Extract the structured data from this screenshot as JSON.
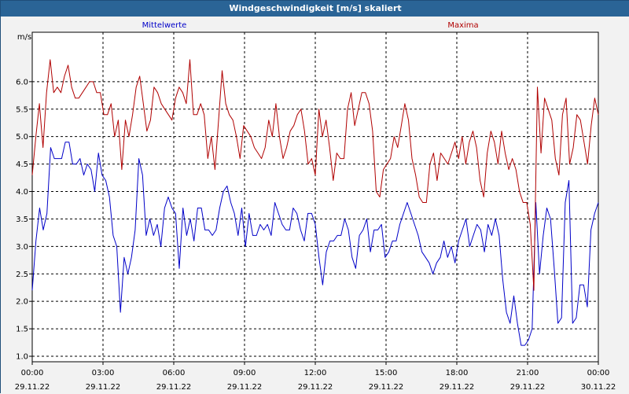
{
  "window": {
    "title": "Windgeschwindigkeit [m/s] skaliert"
  },
  "colors": {
    "titlebar": "#2a6496",
    "mean": "#0000c8",
    "max": "#b00000",
    "grid": "#000000"
  },
  "chart_data": {
    "type": "line",
    "title": "Windgeschwindigkeit [m/s] skaliert",
    "ylabel": "m/s",
    "xlabel": "",
    "ylim": [
      0.9,
      6.9
    ],
    "xlim": [
      0,
      24
    ],
    "grid": true,
    "legend_placement": "top",
    "y_ticks": [
      "1.0",
      "1.5",
      "2.0",
      "2.5",
      "3.0",
      "3.5",
      "4.0",
      "4.5",
      "5.0",
      "5.5",
      "6.0"
    ],
    "x_ticks": [
      {
        "time": "00:00",
        "date": "29.11.22"
      },
      {
        "time": "03:00",
        "date": "29.11.22"
      },
      {
        "time": "06:00",
        "date": "29.11.22"
      },
      {
        "time": "09:00",
        "date": "29.11.22"
      },
      {
        "time": "12:00",
        "date": "29.11.22"
      },
      {
        "time": "15:00",
        "date": "29.11.22"
      },
      {
        "time": "18:00",
        "date": "29.11.22"
      },
      {
        "time": "21:00",
        "date": "29.11.22"
      },
      {
        "time": "00:00",
        "date": "30.11.22"
      }
    ],
    "series": [
      {
        "name": "Mittelwerte",
        "color": "#0000c8",
        "values": [
          2.2,
          3.1,
          3.7,
          3.3,
          3.6,
          4.8,
          4.6,
          4.6,
          4.6,
          4.9,
          4.9,
          4.5,
          4.5,
          4.6,
          4.3,
          4.5,
          4.4,
          4.0,
          4.7,
          4.3,
          4.2,
          3.9,
          3.2,
          3.0,
          1.8,
          2.8,
          2.5,
          2.8,
          3.3,
          4.6,
          4.3,
          3.2,
          3.5,
          3.2,
          3.4,
          3.0,
          3.7,
          3.9,
          3.7,
          3.6,
          2.6,
          3.7,
          3.2,
          3.5,
          3.1,
          3.7,
          3.7,
          3.3,
          3.3,
          3.2,
          3.3,
          3.7,
          4.0,
          4.1,
          3.8,
          3.6,
          3.2,
          3.7,
          3.0,
          3.6,
          3.2,
          3.2,
          3.4,
          3.3,
          3.4,
          3.2,
          3.8,
          3.6,
          3.4,
          3.3,
          3.3,
          3.7,
          3.6,
          3.3,
          3.1,
          3.6,
          3.6,
          3.4,
          2.8,
          2.3,
          2.9,
          3.1,
          3.1,
          3.2,
          3.2,
          3.5,
          3.3,
          2.8,
          2.6,
          3.2,
          3.3,
          3.5,
          2.9,
          3.3,
          3.3,
          3.4,
          2.8,
          2.9,
          3.1,
          3.1,
          3.4,
          3.6,
          3.8,
          3.6,
          3.4,
          3.2,
          2.9,
          2.8,
          2.7,
          2.5,
          2.7,
          2.8,
          3.1,
          2.8,
          3.0,
          2.7,
          3.1,
          3.3,
          3.5,
          3.0,
          3.2,
          3.4,
          3.3,
          2.9,
          3.4,
          3.2,
          3.5,
          3.2,
          2.4,
          1.8,
          1.6,
          2.1,
          1.6,
          1.2,
          1.2,
          1.3,
          1.5,
          3.8,
          2.5,
          3.2,
          3.7,
          3.5,
          2.6,
          1.6,
          1.7,
          3.8,
          4.2,
          1.6,
          1.7,
          2.3,
          2.3,
          1.9,
          3.3,
          3.6,
          3.8
        ]
      },
      {
        "name": "Maxima",
        "color": "#b00000",
        "values": [
          4.3,
          5.0,
          5.6,
          4.8,
          5.8,
          6.4,
          5.8,
          5.9,
          5.8,
          6.1,
          6.3,
          5.9,
          5.7,
          5.7,
          5.8,
          5.9,
          6.0,
          6.0,
          5.8,
          5.8,
          5.4,
          5.4,
          5.6,
          5.0,
          5.3,
          4.4,
          5.3,
          5.0,
          5.4,
          5.9,
          6.1,
          5.6,
          5.1,
          5.3,
          5.9,
          5.8,
          5.6,
          5.5,
          5.4,
          5.3,
          5.7,
          5.9,
          5.8,
          5.6,
          6.4,
          5.4,
          5.4,
          5.6,
          5.4,
          4.6,
          5.0,
          4.4,
          5.3,
          6.2,
          5.6,
          5.4,
          5.3,
          5.0,
          4.6,
          5.2,
          5.1,
          5.0,
          4.8,
          4.7,
          4.6,
          4.8,
          5.3,
          5.0,
          5.6,
          5.0,
          4.6,
          4.8,
          5.1,
          5.2,
          5.4,
          5.5,
          5.1,
          4.5,
          4.6,
          4.3,
          5.5,
          5.0,
          5.3,
          4.8,
          4.2,
          4.7,
          4.6,
          4.6,
          5.5,
          5.8,
          5.2,
          5.5,
          5.8,
          5.8,
          5.6,
          5.1,
          4.0,
          3.9,
          4.4,
          4.5,
          4.6,
          5.0,
          4.8,
          5.2,
          5.6,
          5.3,
          4.6,
          4.3,
          3.9,
          3.8,
          3.8,
          4.5,
          4.7,
          4.2,
          4.7,
          4.6,
          4.5,
          4.7,
          4.9,
          4.6,
          5.0,
          4.5,
          4.9,
          5.1,
          4.8,
          4.2,
          3.9,
          4.7,
          5.1,
          4.9,
          4.5,
          5.1,
          4.7,
          4.4,
          4.6,
          4.4,
          4.0,
          3.8,
          3.8,
          3.4,
          2.2,
          5.9,
          4.7,
          5.7,
          5.5,
          5.3,
          4.6,
          4.3,
          5.4,
          5.7,
          4.5,
          4.8,
          5.4,
          5.3,
          4.9,
          4.5,
          5.2,
          5.7,
          5.4
        ]
      }
    ]
  }
}
